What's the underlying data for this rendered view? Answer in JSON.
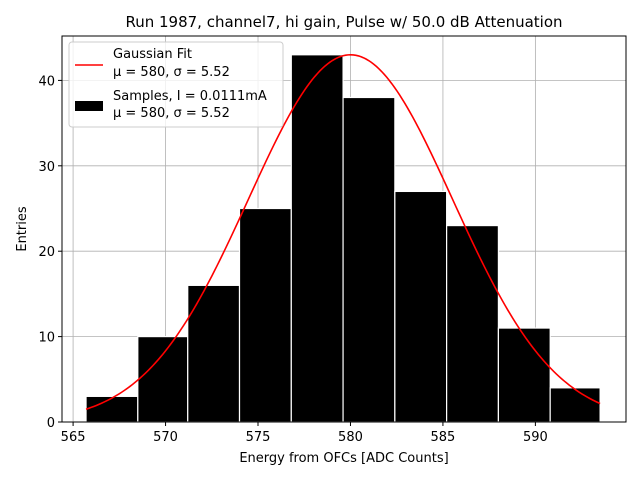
{
  "chart_data": {
    "type": "bar",
    "title": "Run 1987, channel7, hi gain, Pulse w/ 50.0 dB Attenuation",
    "xlabel": "Energy from OFCs [ADC Counts]",
    "ylabel": "Entries",
    "xlim": [
      564.4,
      594.9
    ],
    "ylim": [
      0,
      45.2
    ],
    "xticks": [
      565,
      570,
      575,
      580,
      585,
      590
    ],
    "yticks": [
      0,
      10,
      20,
      30,
      40
    ],
    "grid": true,
    "bins": [
      {
        "left": 565.7,
        "right": 568.5,
        "value": 3
      },
      {
        "left": 568.5,
        "right": 571.2,
        "value": 10
      },
      {
        "left": 571.2,
        "right": 574.0,
        "value": 16
      },
      {
        "left": 574.0,
        "right": 576.8,
        "value": 25
      },
      {
        "left": 576.8,
        "right": 579.6,
        "value": 43
      },
      {
        "left": 579.6,
        "right": 582.4,
        "value": 38
      },
      {
        "left": 582.4,
        "right": 585.2,
        "value": 27
      },
      {
        "left": 585.2,
        "right": 588.0,
        "value": 23
      },
      {
        "left": 588.0,
        "right": 590.8,
        "value": 11
      },
      {
        "left": 590.8,
        "right": 593.5,
        "value": 4
      }
    ],
    "fit": {
      "name": "Gaussian Fit",
      "mu": 580,
      "sigma": 5.52,
      "amplitude": 43,
      "x_range": [
        565.7,
        593.5
      ],
      "color": "#ff0000"
    },
    "bar_color": "#000000",
    "legend": {
      "placement": "top-left",
      "entries": [
        {
          "label": "Gaussian Fit",
          "sub": "μ = 580, σ = 5.52"
        },
        {
          "label": "Samples, I = 0.0111mA",
          "sub": "μ = 580, σ = 5.52"
        }
      ]
    }
  }
}
